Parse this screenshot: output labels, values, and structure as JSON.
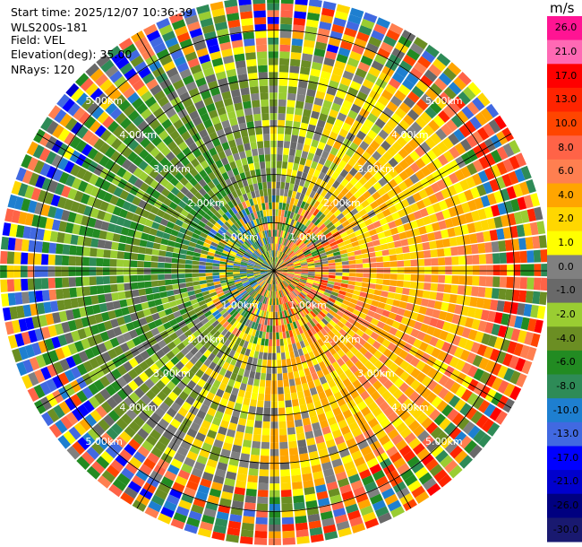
{
  "header": {
    "start_time": "Start time: 2025/12/07 10:36:39",
    "site": "WLS200s-181",
    "field": "Field: VEL",
    "elevation": "Elevation(deg): 35.00",
    "nrays": "NRays: 120"
  },
  "chart_data": {
    "type": "ppi",
    "field": "VEL",
    "elevation_deg": 35.0,
    "n_rays": 120,
    "range_rings": [
      "1.00km",
      "2.00km",
      "3.00km",
      "4.00km",
      "5.00km"
    ],
    "max_range_km": 5.7,
    "colorbar": {
      "unit": "m/s",
      "levels": [
        "26.0",
        "21.0",
        "17.0",
        "13.0",
        "10.0",
        "8.0",
        "6.0",
        "4.0",
        "2.0",
        "1.0",
        "0.0",
        "-1.0",
        "-2.0",
        "-4.0",
        "-6.0",
        "-8.0",
        "-10.0",
        "-13.0",
        "-17.0",
        "-21.0",
        "-26.0",
        "-30.0"
      ],
      "colors": [
        "#ff1493",
        "#ff69b4",
        "#ff0000",
        "#ff2400",
        "#ff4500",
        "#ff6347",
        "#ff7f50",
        "#ffa500",
        "#ffd700",
        "#ffff00",
        "#808080",
        "#696969",
        "#9acd32",
        "#6b8e23",
        "#228b22",
        "#2e8b57",
        "#1e7fd0",
        "#4169e1",
        "#0000ff",
        "#0000cd",
        "#000080",
        "#191970"
      ]
    },
    "pattern": "velocity dipole: positive (yellow/orange) to the east and south, negative (green/blue) to the west and north, noisy near center"
  }
}
